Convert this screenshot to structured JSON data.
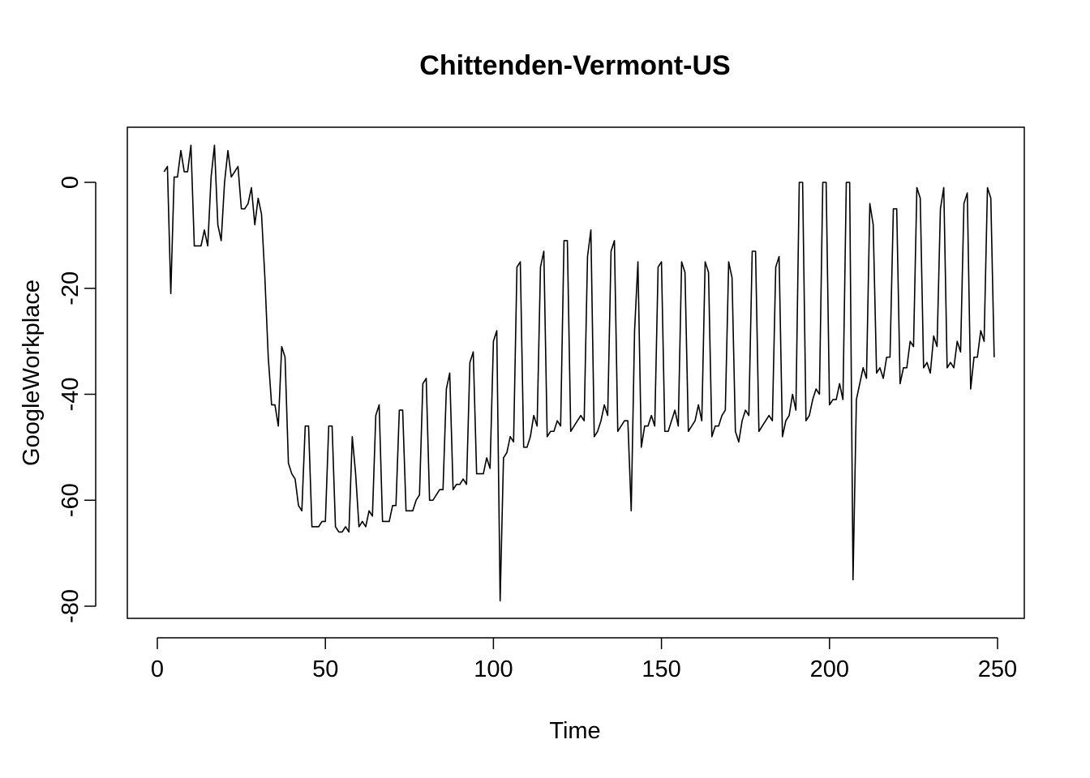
{
  "chart_data": {
    "type": "line",
    "title": "Chittenden-Vermont-US",
    "xlabel": "Time",
    "ylabel": "GoogleWorkplace",
    "xlim": [
      0,
      250
    ],
    "ylim": [
      -80,
      0
    ],
    "x_ticks": [
      0,
      50,
      100,
      150,
      200,
      250
    ],
    "y_ticks": [
      0,
      -20,
      -40,
      -60,
      -80
    ],
    "grid": false,
    "x_start": 2,
    "series": [
      {
        "values": [
          2,
          3,
          -21,
          1,
          1,
          6,
          2,
          2,
          7,
          -12,
          -12,
          -12,
          -9,
          -12,
          1,
          7,
          -8,
          -11,
          0,
          6,
          1,
          2,
          3,
          -5,
          -5,
          -4,
          -1,
          -8,
          -3,
          -6,
          -18,
          -33,
          -42,
          -42,
          -46,
          -31,
          -33,
          -53,
          -55,
          -56,
          -61,
          -62,
          -46,
          -46,
          -65,
          -65,
          -65,
          -64,
          -64,
          -46,
          -46,
          -65,
          -66,
          -66,
          -65,
          -66,
          -48,
          -55,
          -65,
          -64,
          -65,
          -62,
          -63,
          -44,
          -42,
          -64,
          -64,
          -64,
          -61,
          -61,
          -43,
          -43,
          -62,
          -62,
          -62,
          -60,
          -59,
          -38,
          -37,
          -60,
          -60,
          -59,
          -58,
          -58,
          -39,
          -36,
          -58,
          -57,
          -57,
          -56,
          -57,
          -34,
          -32,
          -55,
          -55,
          -55,
          -52,
          -54,
          -30,
          -28,
          -79,
          -52,
          -51,
          -48,
          -49,
          -16,
          -15,
          -50,
          -50,
          -48,
          -44,
          -46,
          -16,
          -13,
          -48,
          -47,
          -47,
          -45,
          -46,
          -11,
          -11,
          -47,
          -46,
          -45,
          -44,
          -45,
          -14,
          -9,
          -48,
          -47,
          -45,
          -42,
          -44,
          -13,
          -11,
          -47,
          -46,
          -45,
          -45,
          -62,
          -28,
          -15,
          -50,
          -46,
          -46,
          -44,
          -46,
          -16,
          -15,
          -47,
          -47,
          -45,
          -43,
          -46,
          -15,
          -17,
          -47,
          -46,
          -45,
          -42,
          -45,
          -15,
          -17,
          -48,
          -46,
          -46,
          -44,
          -43,
          -15,
          -18,
          -47,
          -49,
          -45,
          -43,
          -44,
          -13,
          -13,
          -47,
          -46,
          -45,
          -44,
          -45,
          -16,
          -14,
          -48,
          -45,
          -44,
          -40,
          -43,
          0,
          0,
          -45,
          -44,
          -41,
          -39,
          -40,
          0,
          0,
          -42,
          -41,
          -41,
          -38,
          -41,
          0,
          0,
          -75,
          -41,
          -38,
          -35,
          -37,
          -4,
          -8,
          -36,
          -35,
          -37,
          -33,
          -33,
          -5,
          -5,
          -38,
          -35,
          -35,
          -30,
          -31,
          -1,
          -3,
          -35,
          -34,
          -36,
          -29,
          -31,
          -5,
          -1,
          -35,
          -34,
          -35,
          -30,
          -32,
          -4,
          -2,
          -39,
          -33,
          -33,
          -28,
          -30,
          -1,
          -3,
          -33
        ]
      }
    ]
  }
}
